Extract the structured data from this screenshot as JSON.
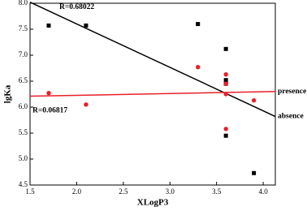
{
  "chart_data": {
    "type": "scatter",
    "x_label": "XLogP3",
    "y_label": "lgKa",
    "xlim": [
      1.5,
      4.13
    ],
    "ylim": [
      4.5,
      8.0
    ],
    "xticks": [
      1.5,
      {
        "value": 2,
        "label": "2.0"
      },
      2.5,
      {
        "value": 3,
        "label": "3.0"
      },
      3.5,
      {
        "value": 4,
        "label": "4.0"
      }
    ],
    "yticks": [
      4.5,
      {
        "value": 5,
        "label": "5.0"
      },
      5.5,
      {
        "value": 6,
        "label": "6.0"
      },
      6.5,
      {
        "value": 7,
        "label": "7.0"
      },
      7.5,
      {
        "value": 8,
        "label": "8.0"
      }
    ],
    "series": [
      {
        "name": "absence",
        "color": "#000000",
        "marker": "square",
        "x": [
          1.7,
          2.1,
          3.3,
          3.6,
          3.6,
          3.6,
          3.6,
          3.9
        ],
        "values": [
          7.57,
          7.57,
          7.6,
          7.12,
          6.52,
          6.45,
          5.45,
          4.73
        ],
        "fit": {
          "x": [
            1.5,
            4.13
          ],
          "values": [
            8.02,
            5.82
          ],
          "r_label": "R=0.68022"
        }
      },
      {
        "name": "presence",
        "color": "#e8202a",
        "marker": "circle",
        "x": [
          1.7,
          2.1,
          3.3,
          3.6,
          3.6,
          3.6,
          3.6,
          3.9
        ],
        "values": [
          6.27,
          6.05,
          6.77,
          6.63,
          6.45,
          6.25,
          5.58,
          6.13
        ],
        "fit": {
          "x": [
            1.5,
            4.13
          ],
          "values": [
            6.21,
            6.3
          ],
          "r_label": "R=0.06817"
        }
      }
    ]
  }
}
